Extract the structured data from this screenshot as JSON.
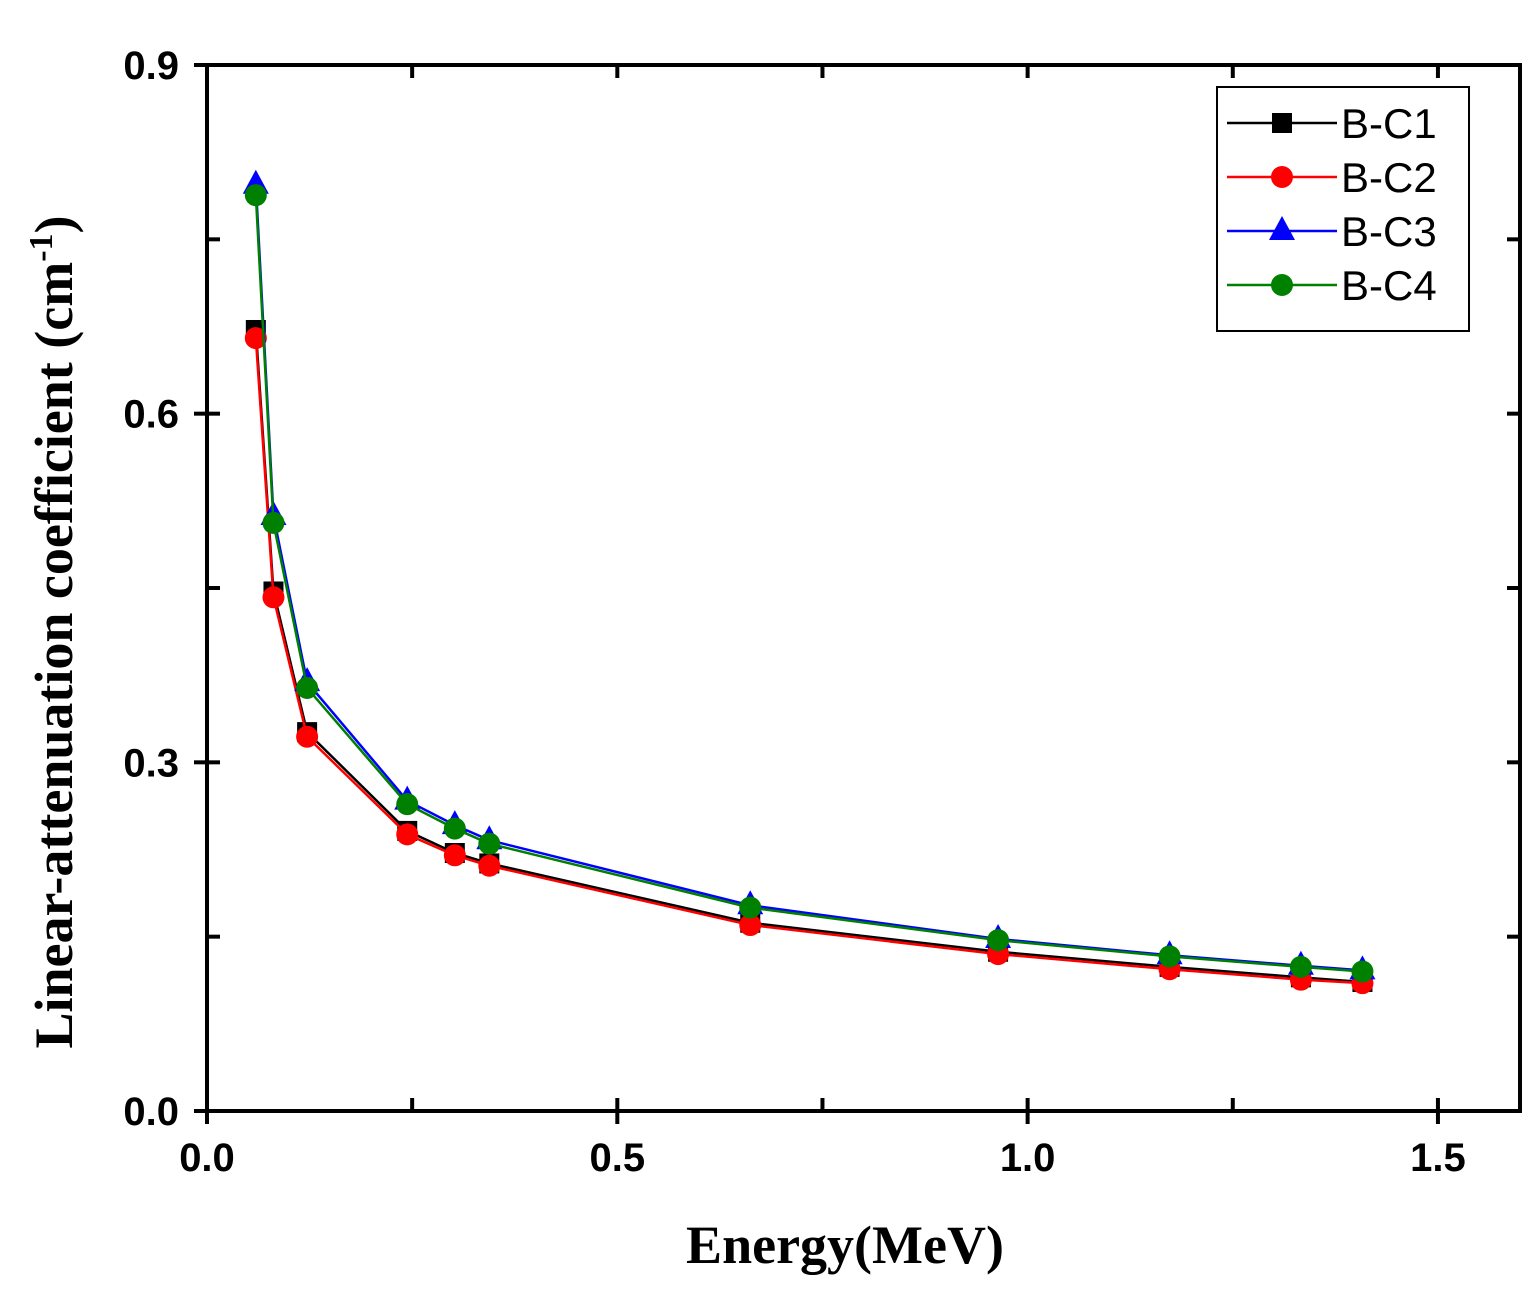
{
  "chart_data": {
    "type": "line",
    "title": "",
    "xlabel": "Energy(MeV)",
    "ylabel_main": "Linear-attenuation coefficient (cm",
    "ylabel_sup": "-1",
    "ylabel_close": ")",
    "xlim": [
      0.0,
      1.6
    ],
    "ylim": [
      0.0,
      0.9
    ],
    "xticks": [
      0.0,
      0.5,
      1.0,
      1.5
    ],
    "xtick_labels": [
      "0.0",
      "0.5",
      "1.0",
      "1.5"
    ],
    "yticks": [
      0.0,
      0.3,
      0.6,
      0.9
    ],
    "ytick_labels": [
      "0.0",
      "0.3",
      "0.6",
      "0.9"
    ],
    "grid": false,
    "legend_position": "top-right",
    "x": [
      0.0595,
      0.081,
      0.122,
      0.244,
      0.302,
      0.344,
      0.662,
      0.964,
      1.173,
      1.333,
      1.408
    ],
    "series": [
      {
        "name": "B-C1",
        "color": "#000000",
        "marker": "square",
        "values": [
          0.672,
          0.447,
          0.326,
          0.241,
          0.222,
          0.213,
          0.162,
          0.137,
          0.124,
          0.115,
          0.111
        ]
      },
      {
        "name": "B-C2",
        "color": "#ff0000",
        "marker": "circle",
        "values": [
          0.665,
          0.442,
          0.322,
          0.238,
          0.22,
          0.211,
          0.16,
          0.135,
          0.122,
          0.113,
          0.11
        ]
      },
      {
        "name": "B-C3",
        "color": "#0000ff",
        "marker": "triangle",
        "values": [
          0.797,
          0.512,
          0.369,
          0.267,
          0.246,
          0.233,
          0.177,
          0.148,
          0.134,
          0.125,
          0.121
        ]
      },
      {
        "name": "B-C4",
        "color": "#008000",
        "marker": "circle",
        "values": [
          0.788,
          0.506,
          0.364,
          0.264,
          0.243,
          0.23,
          0.175,
          0.147,
          0.133,
          0.124,
          0.12
        ]
      }
    ]
  }
}
